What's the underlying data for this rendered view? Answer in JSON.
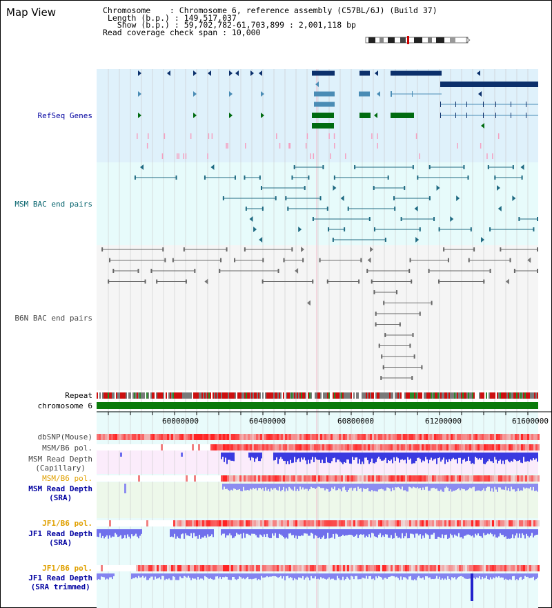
{
  "title": "Map View",
  "info": {
    "line1": "Chromosome    : Chromosome 6, reference assembly (C57BL/6J) (Build 37)",
    "line2": " Length (b.p.) : 149,517,037",
    "line3": "   Show (b.p.) : 59,702,782-61,703,899 : 2,001,118 bp",
    "line4": "Read coverage check span : 10,000"
  },
  "tracks": {
    "refseq": "RefSeq Genes",
    "msm_bac": "MSM BAC end pairs",
    "b6n_bac": "B6N BAC end pairs",
    "repeat": "Repeat",
    "chromosome": "chromosome 6",
    "dbsnp": "dbSNP(Mouse)",
    "msm_b6_pol": "MSM/B6 pol.",
    "msm_depth_cap": "MSM Read Depth\n(Capillary)",
    "msm_b6_pol2": "MSM/B6 pol.",
    "msm_depth_sra": "MSM Read Depth\n(SRA)",
    "jf1_b6_pol": "JF1/B6 pol.",
    "jf1_depth_sra": "JF1 Read Depth\n(SRA)",
    "jf1_b6_pol2": "JF1/B6 pol.",
    "jf1_depth_trim": "JF1 Read Depth\n(SRA trimmed)"
  },
  "axis": {
    "ticks": [
      "60000000",
      "60400000",
      "60800000",
      "61200000",
      "61600000"
    ]
  },
  "colors": {
    "refseq_bg": "#dff1fb",
    "msm_bg": "#e7fbfb",
    "b6n_bg": "#f5f5f5",
    "gene_dark": "#0b2f6b",
    "gene_teal": "#4a8cb5",
    "gene_green": "#006b10",
    "msm_line": "#1f6a82",
    "b6n_line": "#666666",
    "label_blue": "#0000a0",
    "label_teal": "#00606a",
    "label_orange": "#e0a000",
    "label_gray": "#444444"
  }
}
